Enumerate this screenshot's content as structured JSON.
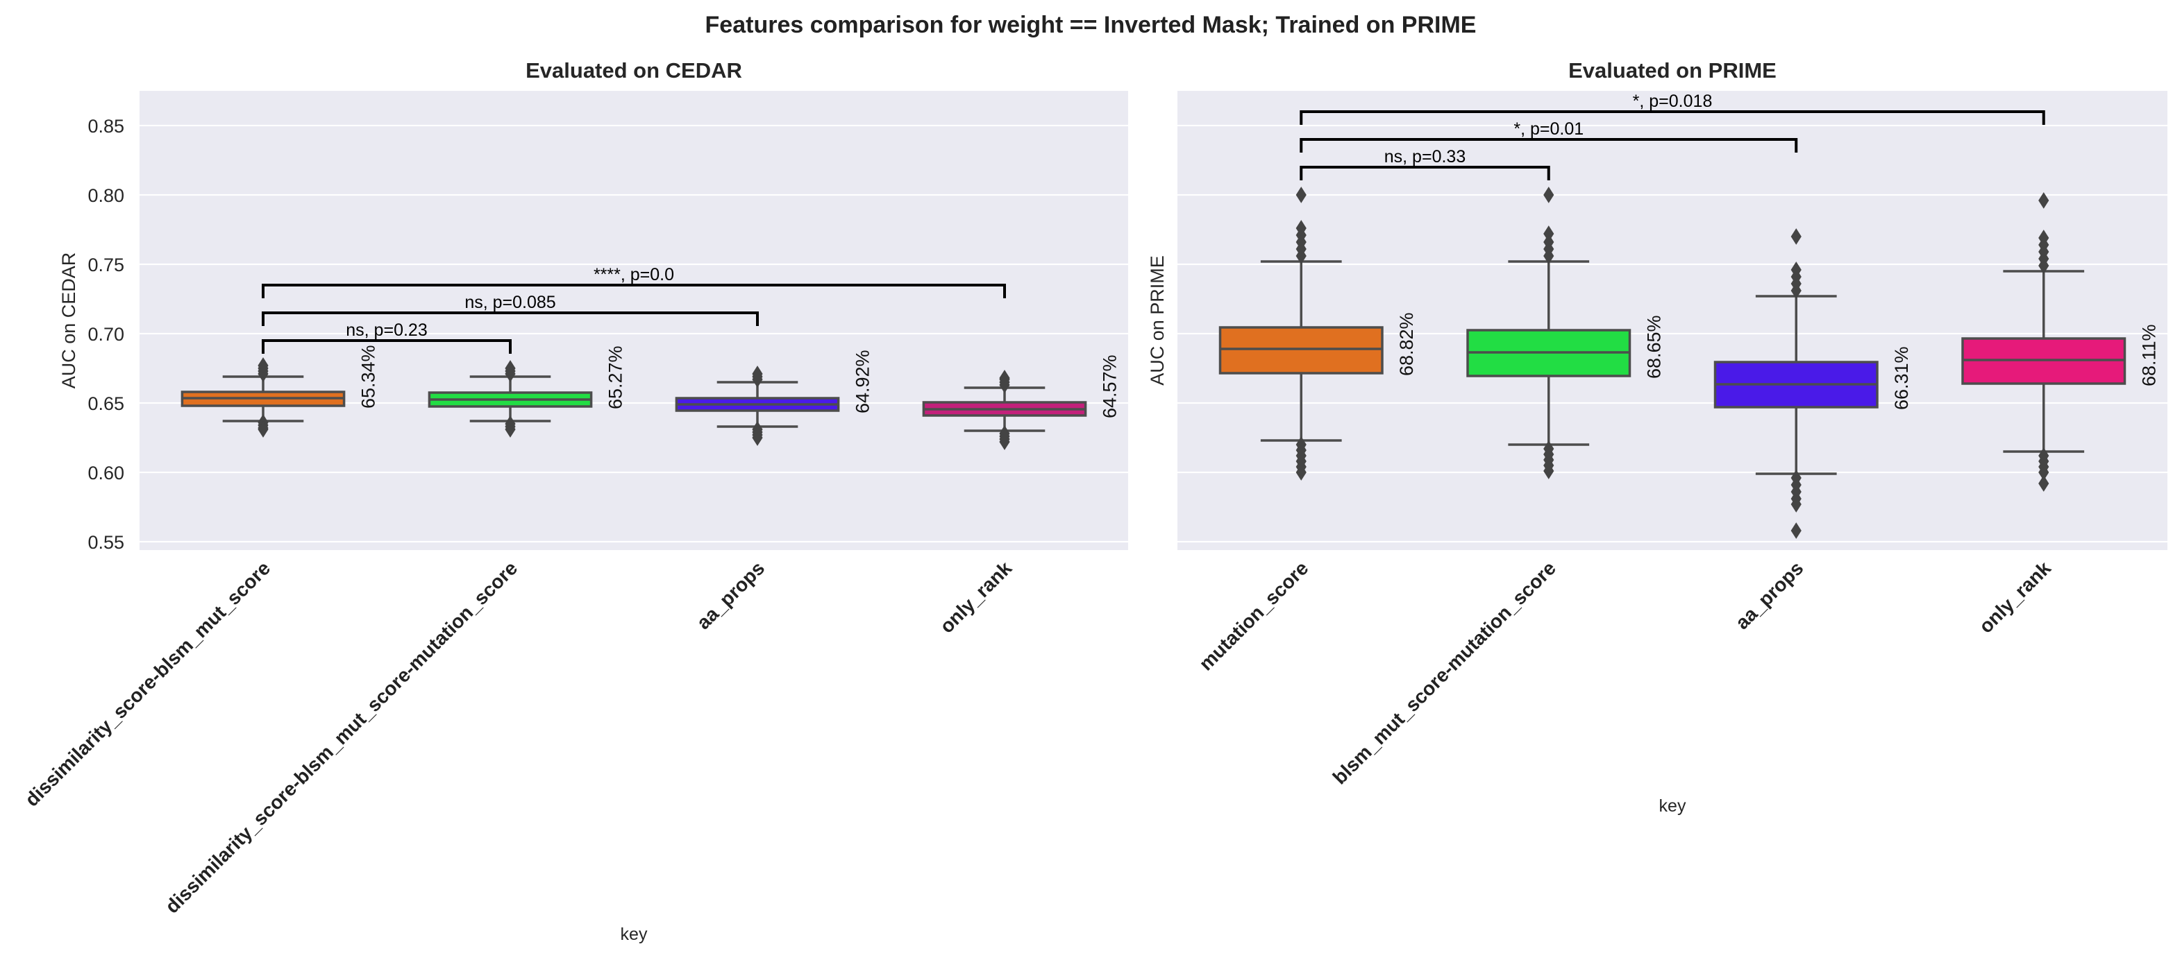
{
  "suptitle": "Features comparison for weight == Inverted Mask; Trained on PRIME",
  "chart_data": [
    {
      "type": "box",
      "title": "Evaluated on CEDAR",
      "xlabel": "key",
      "ylabel": "AUC on CEDAR",
      "ylim": [
        0.544,
        0.875
      ],
      "yticks": [
        "0.55",
        "0.60",
        "0.65",
        "0.70",
        "0.75",
        "0.80",
        "0.85"
      ],
      "grid": true,
      "categories": [
        "dissimilarity_score-blsm_mut_score",
        "dissimilarity_score-blsm_mut_score-mutation_score",
        "aa_props",
        "only_rank"
      ],
      "colors": [
        "#e07020",
        "#22dd44",
        "#4a1ae8",
        "#c3207a"
      ],
      "boxes": [
        {
          "q1": 0.648,
          "median": 0.6535,
          "q3": 0.658,
          "whisker_low": 0.637,
          "whisker_high": 0.669,
          "outliers_low": [
            0.636,
            0.634,
            0.632,
            0.631
          ],
          "outliers_high": [
            0.671,
            0.673,
            0.675,
            0.677
          ],
          "label": "65.34%"
        },
        {
          "q1": 0.6475,
          "median": 0.6525,
          "q3": 0.6575,
          "whisker_low": 0.637,
          "whisker_high": 0.669,
          "outliers_low": [
            0.635,
            0.633,
            0.631
          ],
          "outliers_high": [
            0.671,
            0.673,
            0.675
          ],
          "label": "65.27%"
        },
        {
          "q1": 0.6445,
          "median": 0.649,
          "q3": 0.6535,
          "whisker_low": 0.633,
          "whisker_high": 0.665,
          "outliers_low": [
            0.631,
            0.629,
            0.627,
            0.625
          ],
          "outliers_high": [
            0.667,
            0.669,
            0.671
          ],
          "label": "64.92%"
        },
        {
          "q1": 0.641,
          "median": 0.6455,
          "q3": 0.6505,
          "whisker_low": 0.63,
          "whisker_high": 0.661,
          "outliers_low": [
            0.628,
            0.626,
            0.624,
            0.622
          ],
          "outliers_high": [
            0.663,
            0.665,
            0.667,
            0.668
          ],
          "label": "64.57%"
        }
      ],
      "annotations": [
        {
          "from": 0,
          "to": 1,
          "y": 0.695,
          "text": "ns, p=0.23"
        },
        {
          "from": 0,
          "to": 2,
          "y": 0.715,
          "text": "ns, p=0.085"
        },
        {
          "from": 0,
          "to": 3,
          "y": 0.735,
          "text": "****, p=0.0"
        }
      ]
    },
    {
      "type": "box",
      "title": "Evaluated on PRIME",
      "xlabel": "key",
      "ylabel": "AUC on PRIME",
      "ylim": [
        0.544,
        0.875
      ],
      "yticks": [],
      "grid": true,
      "categories": [
        "mutation_score",
        "blsm_mut_score-mutation_score",
        "aa_props",
        "only_rank"
      ],
      "colors": [
        "#e07020",
        "#22dd44",
        "#4a1ae8",
        "#e61a7a"
      ],
      "boxes": [
        {
          "q1": 0.6715,
          "median": 0.689,
          "q3": 0.7045,
          "whisker_low": 0.623,
          "whisker_high": 0.752,
          "outliers_low": [
            0.62,
            0.616,
            0.612,
            0.608,
            0.604,
            0.6
          ],
          "outliers_high": [
            0.756,
            0.761,
            0.766,
            0.771,
            0.776,
            0.8
          ],
          "label": "68.82%"
        },
        {
          "q1": 0.6695,
          "median": 0.6865,
          "q3": 0.7025,
          "whisker_low": 0.62,
          "whisker_high": 0.752,
          "outliers_low": [
            0.617,
            0.613,
            0.609,
            0.605,
            0.601
          ],
          "outliers_high": [
            0.756,
            0.761,
            0.766,
            0.772,
            0.8
          ],
          "label": "68.65%"
        },
        {
          "q1": 0.647,
          "median": 0.6635,
          "q3": 0.6795,
          "whisker_low": 0.599,
          "whisker_high": 0.727,
          "outliers_low": [
            0.596,
            0.591,
            0.586,
            0.581,
            0.577,
            0.558
          ],
          "outliers_high": [
            0.731,
            0.736,
            0.741,
            0.746,
            0.77
          ],
          "label": "66.31%"
        },
        {
          "q1": 0.664,
          "median": 0.681,
          "q3": 0.6965,
          "whisker_low": 0.615,
          "whisker_high": 0.745,
          "outliers_low": [
            0.612,
            0.608,
            0.604,
            0.6,
            0.592
          ],
          "outliers_high": [
            0.749,
            0.754,
            0.759,
            0.764,
            0.769,
            0.796
          ],
          "label": "68.11%"
        }
      ],
      "annotations": [
        {
          "from": 0,
          "to": 1,
          "y": 0.82,
          "text": "ns, p=0.33"
        },
        {
          "from": 0,
          "to": 2,
          "y": 0.84,
          "text": "*, p=0.01"
        },
        {
          "from": 0,
          "to": 3,
          "y": 0.86,
          "text": "*, p=0.018"
        }
      ]
    }
  ]
}
